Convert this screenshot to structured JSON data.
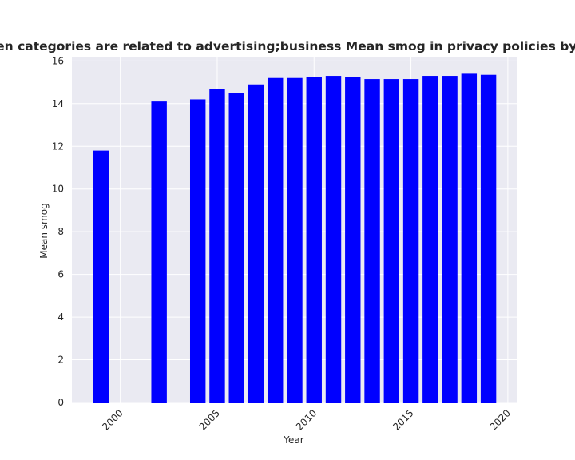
{
  "chart_data": {
    "type": "bar",
    "title": "when categories are related to advertising;business Mean smog in privacy policies by Year",
    "xlabel": "Year",
    "ylabel": "Mean smog",
    "xlim": [
      1997.5,
      2020.5
    ],
    "ylim": [
      0,
      16.2
    ],
    "xticks": [
      2000,
      2005,
      2010,
      2015,
      2020
    ],
    "yticks": [
      0,
      2,
      4,
      6,
      8,
      10,
      12,
      14,
      16
    ],
    "xtick_labels": [
      "2000",
      "2005",
      "2010",
      "2015",
      "2020"
    ],
    "ytick_labels": [
      "0",
      "2",
      "4",
      "6",
      "8",
      "10",
      "12",
      "14",
      "16"
    ],
    "bar_color": "#0000ff",
    "background_color": "#eaeaf2",
    "grid": true,
    "x": [
      1999,
      2002,
      2004,
      2005,
      2006,
      2007,
      2008,
      2009,
      2010,
      2011,
      2012,
      2013,
      2014,
      2015,
      2016,
      2017,
      2018,
      2019
    ],
    "values": [
      11.8,
      14.1,
      14.2,
      14.7,
      14.5,
      14.9,
      15.2,
      15.2,
      15.25,
      15.3,
      15.25,
      15.15,
      15.15,
      15.15,
      15.3,
      15.3,
      15.4,
      15.35
    ]
  }
}
